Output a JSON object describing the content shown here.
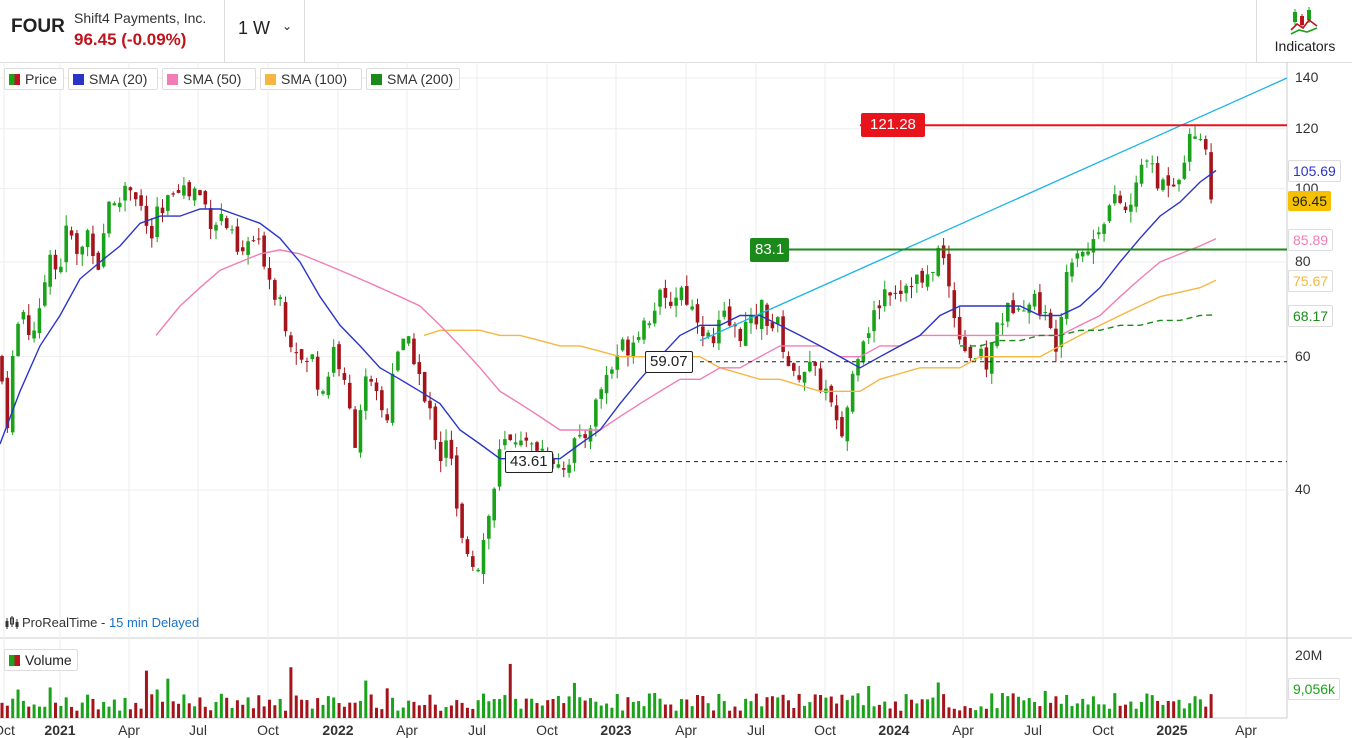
{
  "header": {
    "ticker": "FOUR",
    "company": "Shift4 Payments, Inc.",
    "price": "96.45 (-0.09%)",
    "interval": "1 W",
    "indicators_label": "Indicators",
    "icon": "chevron-down-icon"
  },
  "legend": {
    "items": [
      {
        "label": "Price",
        "color": "#1aa31a"
      },
      {
        "label": "SMA (20)",
        "color": "#2a35c8"
      },
      {
        "label": "SMA (50)",
        "color": "#f27db5"
      },
      {
        "label": "SMA (100)",
        "color": "#f7b542"
      },
      {
        "label": "SMA (200)",
        "color": "#1a8a1a"
      }
    ]
  },
  "source": {
    "name": "ProRealTime - ",
    "delay": "15 min Delayed"
  },
  "volume": {
    "label": "Volume",
    "max_label": "20M",
    "last_label": "9,056k"
  },
  "chart_data": {
    "type": "candlestick",
    "y_axis": {
      "ticks": [
        "140",
        "120",
        "100",
        "80",
        "60",
        "40"
      ],
      "scale": "log"
    },
    "x_axis": {
      "ticks": [
        {
          "label": "Oct",
          "bold": false
        },
        {
          "label": "2021",
          "bold": true
        },
        {
          "label": "Apr",
          "bold": false
        },
        {
          "label": "Jul",
          "bold": false
        },
        {
          "label": "Oct",
          "bold": false
        },
        {
          "label": "2022",
          "bold": true
        },
        {
          "label": "Apr",
          "bold": false
        },
        {
          "label": "Jul",
          "bold": false
        },
        {
          "label": "Oct",
          "bold": false
        },
        {
          "label": "2023",
          "bold": true
        },
        {
          "label": "Apr",
          "bold": false
        },
        {
          "label": "Jul",
          "bold": false
        },
        {
          "label": "Oct",
          "bold": false
        },
        {
          "label": "2024",
          "bold": true
        },
        {
          "label": "Apr",
          "bold": false
        },
        {
          "label": "Jul",
          "bold": false
        },
        {
          "label": "Oct",
          "bold": false
        },
        {
          "label": "2025",
          "bold": true
        },
        {
          "label": "Apr",
          "bold": false
        }
      ]
    },
    "levels": [
      {
        "label": "121.28",
        "value": 121.28,
        "color": "#e8141c"
      },
      {
        "label": "83.1",
        "value": 83.1,
        "color": "#1a8a1a"
      },
      {
        "label": "59.07",
        "value": 59.07,
        "style": "dashed"
      },
      {
        "label": "43.61",
        "value": 43.61,
        "style": "dashed"
      }
    ],
    "badges": [
      {
        "label": "105.69",
        "series": "SMA (20)",
        "color": "#2a35c8"
      },
      {
        "label": "96.45",
        "series": "Price",
        "color": "#f5c000"
      },
      {
        "label": "85.89",
        "series": "SMA (50)",
        "color": "#f27db5"
      },
      {
        "label": "75.67",
        "series": "SMA (100)",
        "color": "#f7b542"
      },
      {
        "label": "68.17",
        "series": "SMA (200)",
        "color": "#1a8a1a"
      }
    ],
    "sma_last": {
      "SMA (20)": 105.69,
      "SMA (50)": 85.89,
      "SMA (100)": 75.67,
      "SMA (200)": 68.17
    },
    "last_close": 96.45,
    "price_path": [
      [
        0,
        60
      ],
      [
        6,
        47
      ],
      [
        14,
        62
      ],
      [
        22,
        70
      ],
      [
        30,
        64
      ],
      [
        40,
        68
      ],
      [
        50,
        84
      ],
      [
        58,
        76
      ],
      [
        68,
        90
      ],
      [
        78,
        80
      ],
      [
        88,
        88
      ],
      [
        100,
        78
      ],
      [
        108,
        98
      ],
      [
        116,
        93
      ],
      [
        126,
        102
      ],
      [
        134,
        100
      ],
      [
        142,
        94
      ],
      [
        150,
        84
      ],
      [
        156,
        92
      ],
      [
        164,
        92
      ],
      [
        172,
        100
      ],
      [
        180,
        102
      ],
      [
        188,
        98
      ],
      [
        196,
        100
      ],
      [
        204,
        96
      ],
      [
        212,
        90
      ],
      [
        222,
        92
      ],
      [
        232,
        86
      ],
      [
        240,
        80
      ],
      [
        250,
        86
      ],
      [
        258,
        84
      ],
      [
        266,
        80
      ],
      [
        272,
        74
      ],
      [
        280,
        72
      ],
      [
        288,
        64
      ],
      [
        296,
        62
      ],
      [
        304,
        58
      ],
      [
        312,
        60
      ],
      [
        320,
        54
      ],
      [
        326,
        55
      ],
      [
        334,
        62
      ],
      [
        340,
        58
      ],
      [
        348,
        52
      ],
      [
        356,
        46
      ],
      [
        364,
        56
      ],
      [
        372,
        54
      ],
      [
        380,
        52
      ],
      [
        386,
        48
      ],
      [
        394,
        60
      ],
      [
        400,
        62
      ],
      [
        410,
        62
      ],
      [
        418,
        58
      ],
      [
        424,
        52
      ],
      [
        432,
        50
      ],
      [
        440,
        44
      ],
      [
        448,
        48
      ],
      [
        454,
        40
      ],
      [
        460,
        34
      ],
      [
        466,
        34
      ],
      [
        474,
        32
      ],
      [
        480,
        32
      ],
      [
        486,
        36
      ],
      [
        492,
        38
      ],
      [
        498,
        44
      ],
      [
        504,
        46
      ],
      [
        512,
        46
      ],
      [
        520,
        48
      ],
      [
        528,
        45
      ],
      [
        536,
        46
      ],
      [
        544,
        45
      ],
      [
        552,
        44
      ],
      [
        560,
        44
      ],
      [
        566,
        42
      ],
      [
        572,
        46
      ],
      [
        580,
        46
      ],
      [
        588,
        48
      ],
      [
        596,
        52
      ],
      [
        604,
        56
      ],
      [
        612,
        58
      ],
      [
        620,
        62
      ],
      [
        630,
        62
      ],
      [
        640,
        66
      ],
      [
        650,
        68
      ],
      [
        658,
        72
      ],
      [
        666,
        70
      ],
      [
        674,
        72
      ],
      [
        682,
        74
      ],
      [
        690,
        70
      ],
      [
        698,
        68
      ],
      [
        706,
        64
      ],
      [
        714,
        62
      ],
      [
        722,
        68
      ],
      [
        730,
        66
      ],
      [
        738,
        64
      ],
      [
        746,
        66
      ],
      [
        754,
        66
      ],
      [
        762,
        70
      ],
      [
        770,
        66
      ],
      [
        778,
        66
      ],
      [
        786,
        60
      ],
      [
        794,
        56
      ],
      [
        802,
        58
      ],
      [
        810,
        58
      ],
      [
        818,
        56
      ],
      [
        826,
        54
      ],
      [
        834,
        50
      ],
      [
        840,
        46
      ],
      [
        848,
        52
      ],
      [
        856,
        60
      ],
      [
        862,
        64
      ],
      [
        870,
        66
      ],
      [
        878,
        70
      ],
      [
        886,
        74
      ],
      [
        894,
        74
      ],
      [
        902,
        74
      ],
      [
        910,
        76
      ],
      [
        918,
        76
      ],
      [
        926,
        74
      ],
      [
        934,
        80
      ],
      [
        940,
        84
      ],
      [
        946,
        78
      ],
      [
        952,
        70
      ],
      [
        958,
        66
      ],
      [
        964,
        62
      ],
      [
        972,
        60
      ],
      [
        980,
        60
      ],
      [
        988,
        58
      ],
      [
        996,
        66
      ],
      [
        1004,
        68
      ],
      [
        1012,
        70
      ],
      [
        1020,
        72
      ],
      [
        1028,
        70
      ],
      [
        1036,
        72
      ],
      [
        1044,
        68
      ],
      [
        1052,
        64
      ],
      [
        1058,
        62
      ],
      [
        1064,
        76
      ],
      [
        1072,
        82
      ],
      [
        1080,
        84
      ],
      [
        1088,
        82
      ],
      [
        1096,
        88
      ],
      [
        1104,
        92
      ],
      [
        1112,
        96
      ],
      [
        1120,
        96
      ],
      [
        1128,
        92
      ],
      [
        1136,
        100
      ],
      [
        1142,
        108
      ],
      [
        1148,
        112
      ],
      [
        1154,
        102
      ],
      [
        1160,
        100
      ],
      [
        1166,
        104
      ],
      [
        1172,
        102
      ],
      [
        1180,
        106
      ],
      [
        1186,
        112
      ],
      [
        1192,
        118
      ],
      [
        1198,
        118
      ],
      [
        1204,
        120
      ],
      [
        1210,
        96
      ],
      [
        1216,
        96
      ]
    ],
    "sma20_path": [
      [
        0,
        46
      ],
      [
        20,
        54
      ],
      [
        40,
        62
      ],
      [
        60,
        68
      ],
      [
        80,
        76
      ],
      [
        100,
        80
      ],
      [
        120,
        84
      ],
      [
        140,
        90
      ],
      [
        160,
        92
      ],
      [
        180,
        92
      ],
      [
        200,
        94
      ],
      [
        220,
        94
      ],
      [
        240,
        92
      ],
      [
        260,
        90
      ],
      [
        280,
        86
      ],
      [
        300,
        80
      ],
      [
        320,
        72
      ],
      [
        340,
        66
      ],
      [
        360,
        62
      ],
      [
        380,
        58
      ],
      [
        400,
        56
      ],
      [
        420,
        54
      ],
      [
        440,
        52
      ],
      [
        460,
        48
      ],
      [
        480,
        46
      ],
      [
        500,
        44
      ],
      [
        520,
        44
      ],
      [
        540,
        44
      ],
      [
        560,
        44
      ],
      [
        580,
        46
      ],
      [
        600,
        48
      ],
      [
        620,
        52
      ],
      [
        640,
        56
      ],
      [
        660,
        60
      ],
      [
        680,
        64
      ],
      [
        700,
        66
      ],
      [
        720,
        66
      ],
      [
        740,
        68
      ],
      [
        760,
        68
      ],
      [
        780,
        66
      ],
      [
        800,
        64
      ],
      [
        820,
        62
      ],
      [
        840,
        60
      ],
      [
        860,
        58
      ],
      [
        880,
        60
      ],
      [
        900,
        62
      ],
      [
        920,
        64
      ],
      [
        940,
        68
      ],
      [
        960,
        70
      ],
      [
        980,
        70
      ],
      [
        1000,
        70
      ],
      [
        1020,
        70
      ],
      [
        1040,
        68
      ],
      [
        1060,
        68
      ],
      [
        1080,
        70
      ],
      [
        1100,
        74
      ],
      [
        1120,
        80
      ],
      [
        1140,
        86
      ],
      [
        1160,
        92
      ],
      [
        1180,
        96
      ],
      [
        1200,
        102
      ],
      [
        1216,
        105.69
      ]
    ],
    "sma50_path": [
      [
        156,
        64
      ],
      [
        180,
        70
      ],
      [
        200,
        74
      ],
      [
        220,
        78
      ],
      [
        240,
        80
      ],
      [
        260,
        82
      ],
      [
        280,
        83
      ],
      [
        300,
        82
      ],
      [
        320,
        80
      ],
      [
        340,
        78
      ],
      [
        360,
        76
      ],
      [
        380,
        74
      ],
      [
        400,
        72
      ],
      [
        420,
        70
      ],
      [
        440,
        66
      ],
      [
        460,
        62
      ],
      [
        480,
        58
      ],
      [
        500,
        54
      ],
      [
        520,
        52
      ],
      [
        540,
        50
      ],
      [
        560,
        48
      ],
      [
        580,
        48
      ],
      [
        600,
        48
      ],
      [
        620,
        50
      ],
      [
        640,
        52
      ],
      [
        660,
        54
      ],
      [
        680,
        56
      ],
      [
        700,
        56
      ],
      [
        720,
        58
      ],
      [
        740,
        58
      ],
      [
        760,
        60
      ],
      [
        780,
        62
      ],
      [
        800,
        62
      ],
      [
        820,
        62
      ],
      [
        840,
        60
      ],
      [
        860,
        60
      ],
      [
        880,
        62
      ],
      [
        900,
        62
      ],
      [
        920,
        64
      ],
      [
        940,
        64
      ],
      [
        960,
        64
      ],
      [
        980,
        64
      ],
      [
        1000,
        64
      ],
      [
        1020,
        64
      ],
      [
        1040,
        64
      ],
      [
        1060,
        64
      ],
      [
        1080,
        66
      ],
      [
        1100,
        68
      ],
      [
        1120,
        72
      ],
      [
        1140,
        76
      ],
      [
        1160,
        80
      ],
      [
        1180,
        82
      ],
      [
        1200,
        84
      ],
      [
        1216,
        85.89
      ]
    ],
    "sma100_path": [
      [
        424,
        64
      ],
      [
        440,
        65
      ],
      [
        460,
        65
      ],
      [
        480,
        65
      ],
      [
        500,
        64
      ],
      [
        520,
        64
      ],
      [
        540,
        63
      ],
      [
        560,
        62
      ],
      [
        580,
        62
      ],
      [
        600,
        61
      ],
      [
        620,
        60
      ],
      [
        640,
        60
      ],
      [
        660,
        60
      ],
      [
        680,
        60
      ],
      [
        700,
        60
      ],
      [
        720,
        58
      ],
      [
        740,
        57
      ],
      [
        760,
        56
      ],
      [
        780,
        56
      ],
      [
        800,
        55
      ],
      [
        820,
        54
      ],
      [
        840,
        54
      ],
      [
        860,
        54
      ],
      [
        880,
        56
      ],
      [
        900,
        57
      ],
      [
        920,
        58
      ],
      [
        940,
        58
      ],
      [
        960,
        58
      ],
      [
        980,
        60
      ],
      [
        1000,
        60
      ],
      [
        1020,
        60
      ],
      [
        1040,
        60
      ],
      [
        1060,
        62
      ],
      [
        1080,
        64
      ],
      [
        1100,
        66
      ],
      [
        1120,
        68
      ],
      [
        1140,
        70
      ],
      [
        1160,
        72
      ],
      [
        1180,
        73
      ],
      [
        1200,
        74
      ],
      [
        1216,
        75.67
      ]
    ],
    "sma200_path": [
      [
        960,
        62
      ],
      [
        980,
        62
      ],
      [
        1000,
        63
      ],
      [
        1020,
        63
      ],
      [
        1040,
        64
      ],
      [
        1060,
        64
      ],
      [
        1080,
        65
      ],
      [
        1100,
        65
      ],
      [
        1120,
        66
      ],
      [
        1140,
        66
      ],
      [
        1160,
        67
      ],
      [
        1180,
        67
      ],
      [
        1200,
        68
      ],
      [
        1216,
        68.17
      ]
    ]
  }
}
